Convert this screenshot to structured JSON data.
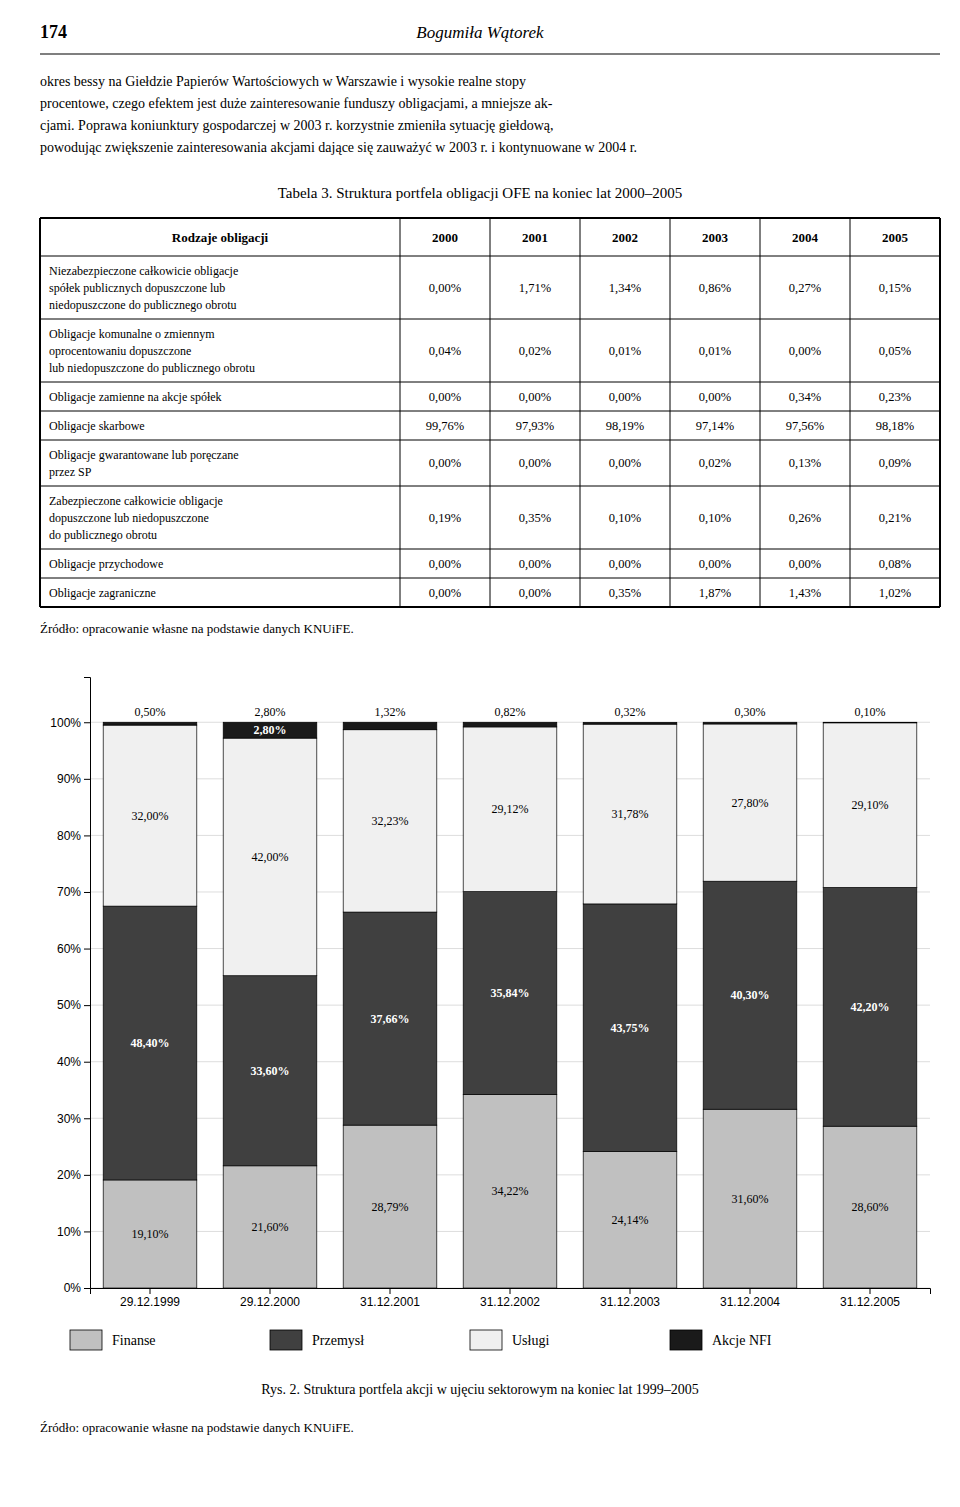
{
  "page_number": "174",
  "page_header": "Bogumiła Wątorek",
  "body_text": [
    "okres bessy na Giełdzie Papierów Wartościowych w Warszawie i wysokie realne stopy",
    "procentowe, czego efektem jest duże zainteresowanie funduszy obligacjami, a mniejsze ak-",
    "cjami. Poprawa koniunktury gospodarczej w 2003 r. korzystnie zmieniła sytuację giełdową,",
    "powodując zwiększenie zainteresowania akcjami dające się zauważyć w 2003 r. i kontynuowane w 2004 r."
  ],
  "table": {
    "title": "Tabela  3. Struktura portfela obligacji OFE na koniec lat 2000–2005",
    "headers": [
      "Rodzaje obligacji",
      "2000",
      "2001",
      "2002",
      "2003",
      "2004",
      "2005"
    ],
    "rows": [
      {
        "label": "Niezabezpieczone całkowicie obligacje\nspółek publicznych dopuszczone lub\nniedopuszczone do publicznego obrotu",
        "values": [
          "0,00%",
          "1,71%",
          "1,34%",
          "0,86%",
          "0,27%",
          "0,15%"
        ]
      },
      {
        "label": "Obligacje komunalne o zmiennym\noprocentowaniu dopuszczone\nlub niedopuszczone do publicznego obrotu",
        "values": [
          "0,04%",
          "0,02%",
          "0,01%",
          "0,01%",
          "0,00%",
          "0,05%"
        ]
      },
      {
        "label": "Obligacje zamienne na akcje spółek",
        "values": [
          "0,00%",
          "0,00%",
          "0,00%",
          "0,00%",
          "0,34%",
          "0,23%"
        ]
      },
      {
        "label": "Obligacje skarbowe",
        "values": [
          "99,76%",
          "97,93%",
          "98,19%",
          "97,14%",
          "97,56%",
          "98,18%"
        ]
      },
      {
        "label": "Obligacje gwarantowane lub poręczane\nprzez  SP",
        "values": [
          "0,00%",
          "0,00%",
          "0,00%",
          "0,02%",
          "0,13%",
          "0,09%"
        ]
      },
      {
        "label": "Zabezpieczone całkowicie obligacje\ndopuszczone lub  niedopuszczone\ndo publicznego obrotu",
        "values": [
          "0,19%",
          "0,35%",
          "0,10%",
          "0,10%",
          "0,26%",
          "0,21%"
        ]
      },
      {
        "label": "Obligacje przychodowe",
        "values": [
          "0,00%",
          "0,00%",
          "0,00%",
          "0,00%",
          "0,00%",
          "0,08%"
        ]
      },
      {
        "label": "Obligacje zagraniczne",
        "values": [
          "0,00%",
          "0,00%",
          "0,35%",
          "1,87%",
          "1,43%",
          "1,02%"
        ]
      }
    ],
    "source": "Źródło: opracowanie własne na podstawie danych KNUiFE."
  },
  "chart_data": {
    "type": "bar",
    "stacked": true,
    "title": "Rys. 2. Struktura portfela akcji w ujęciu sektorowym na koniec lat 1999–2005",
    "categories": [
      "29.12.1999",
      "29.12.2000",
      "31.12.2001",
      "31.12.2002",
      "31.12.2003",
      "31.12.2004",
      "31.12.2005"
    ],
    "series": [
      {
        "name": "Finanse",
        "color": "#c0c0c0",
        "values": [
          19.1,
          21.6,
          28.79,
          34.22,
          24.14,
          31.6,
          28.6
        ],
        "value_labels": [
          "19,10%",
          "21,60%",
          "28,79%",
          "34,22%",
          "24,14%",
          "31,60%",
          "28,60%"
        ]
      },
      {
        "name": "Przemysł",
        "color": "#404040",
        "values": [
          48.4,
          33.6,
          37.66,
          35.84,
          43.75,
          40.3,
          42.2
        ],
        "value_labels": [
          "48,40%",
          "33,60%",
          "37,66%",
          "35,84%",
          "43,75%",
          "40,30%",
          "42,20%"
        ]
      },
      {
        "name": "Usługi",
        "color": "#f0f0f0",
        "values": [
          32.0,
          42.0,
          32.23,
          29.12,
          31.78,
          27.8,
          29.1
        ],
        "value_labels": [
          "32,00%",
          "42,00%",
          "32,23%",
          "29,12%",
          "31,78%",
          "27,80%",
          "29,10%"
        ]
      },
      {
        "name": "Akcje NFI",
        "color": "#1a1a1a",
        "values": [
          0.5,
          2.8,
          1.32,
          0.82,
          0.32,
          0.3,
          0.1
        ],
        "value_labels": [
          null,
          "2,80%",
          null,
          null,
          null,
          null,
          null
        ]
      }
    ],
    "annotations": [
      "0,50%",
      "2,80%",
      "1,32%",
      "0,82%",
      "0,32%",
      "0,30%",
      "0,10%"
    ],
    "ylim": [
      0,
      108
    ],
    "yticks": [
      {
        "value": 0,
        "label": "0%"
      },
      {
        "value": 10,
        "label": "10%"
      },
      {
        "value": 20,
        "label": "20%"
      },
      {
        "value": 30,
        "label": "30%"
      },
      {
        "value": 40,
        "label": "40%"
      },
      {
        "value": 50,
        "label": "50%"
      },
      {
        "value": 60,
        "label": "60%"
      },
      {
        "value": 70,
        "label": "70%"
      },
      {
        "value": 80,
        "label": "80%"
      },
      {
        "value": 90,
        "label": "90%"
      },
      {
        "value": 100,
        "label": "100%"
      }
    ],
    "grid": true,
    "data_labels": true,
    "legend": "bottom"
  },
  "chart_source": "Źródło: opracowanie własne na podstawie danych KNUiFE."
}
